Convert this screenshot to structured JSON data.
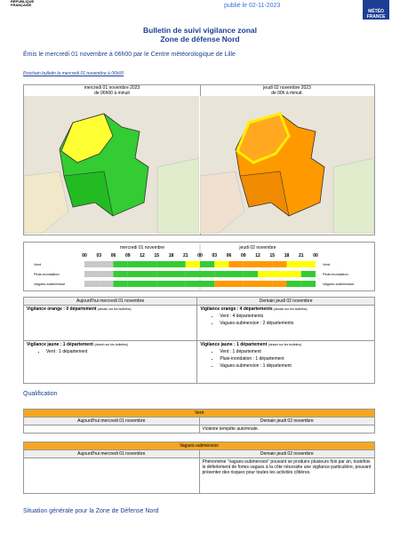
{
  "header": {
    "published": "publié le 02-11-2023",
    "republique": "RÉPUBLIQUE FRANÇAISE",
    "logo": "MÉTÉO FRANCE"
  },
  "title": {
    "line1": "Bulletin de suivi vigilance zonal",
    "line2": "Zone de défense Nord"
  },
  "emitted": "Émis le mercredi 01 novembre à 06h00 par le Centre météorologique de Lille",
  "next_bulletin": "Prochain bulletin le mercredi 01 novembre à 06h00",
  "maps": [
    {
      "day": "mercredi 01 novembre 2023",
      "period": "de 06h00 à minuit"
    },
    {
      "day": "jeudi 02 novembre 2023",
      "period": "de 00h à minuit."
    }
  ],
  "timeline": {
    "days": [
      "mercredi 01 novembre",
      "jeudi 02 novembre"
    ],
    "hours": [
      "00",
      "03",
      "06",
      "09",
      "12",
      "15",
      "18",
      "21",
      "00",
      "03",
      "06",
      "09",
      "12",
      "15",
      "18",
      "21",
      "00"
    ],
    "rows": [
      {
        "label": "Vent",
        "slots": [
          "#c8c8c8",
          "#c8c8c8",
          "#33cc33",
          "#33cc33",
          "#33cc33",
          "#33cc33",
          "#33cc33",
          "#ffff00",
          "#33cc33",
          "#ffff00",
          "#ff9900",
          "#ff9900",
          "#ff9900",
          "#ff9900",
          "#ffff00",
          "#ffff00"
        ]
      },
      {
        "label": "Pluie-inondation",
        "slots": [
          "#c8c8c8",
          "#c8c8c8",
          "#33cc33",
          "#33cc33",
          "#33cc33",
          "#33cc33",
          "#33cc33",
          "#33cc33",
          "#33cc33",
          "#33cc33",
          "#33cc33",
          "#33cc33",
          "#ffff00",
          "#ffff00",
          "#ffff00",
          "#33cc33"
        ]
      },
      {
        "label": "Vagues-submersion",
        "slots": [
          "#c8c8c8",
          "#c8c8c8",
          "#33cc33",
          "#33cc33",
          "#33cc33",
          "#33cc33",
          "#33cc33",
          "#33cc33",
          "#33cc33",
          "#ff9900",
          "#ff9900",
          "#ff9900",
          "#ff9900",
          "#ff9900",
          "#33cc33",
          "#33cc33"
        ]
      }
    ]
  },
  "vigilance_table": {
    "headers": [
      "Aujourd'hui mercredi 01 novembre",
      "Demain jeudi 02 novembre"
    ],
    "orange": {
      "left": "Vigilance orange : 0 département",
      "left_note": "(dessin sur les bulletins)",
      "right": "Vigilance orange : 4 départements",
      "right_note": "(dessin sur les bulletins)",
      "right_items": [
        "Vent : 4 départements",
        "Vagues-submersion : 2 départements"
      ]
    },
    "yellow": {
      "left": "Vigilance jaune : 1 département",
      "left_note": "(dessin sur les bulletins)",
      "left_items": [
        "Vent : 1 département"
      ],
      "right": "Vigilance jaune : 1 département",
      "right_note": "(dessin sur les bulletins)",
      "right_items": [
        "Vent : 1 département",
        "Pluie-inondation : 1 département",
        "Vagues-submersion : 1 département"
      ]
    }
  },
  "qualification": {
    "title": "Qualification",
    "sections": [
      {
        "name": "Vent",
        "headers": [
          "Aujourd'hui mercredi 01 novembre",
          "Demain jeudi 02 novembre"
        ],
        "right": "Violente tempête automnale."
      },
      {
        "name": "Vagues-submersion",
        "headers": [
          "Aujourd'hui mercredi 01 novembre",
          "Demain jeudi 02 novembre"
        ],
        "right": "Phénomène \"vagues-submersion\" pouvant se produire plusieurs fois par an, toutefois le déferlement de fortes vagues à la côte nécessite une vigilance particulière, pouvant présenter des risques pour toutes les activités côtières."
      }
    ]
  },
  "situation": "Situation générale pour la Zone de Défense Nord"
}
